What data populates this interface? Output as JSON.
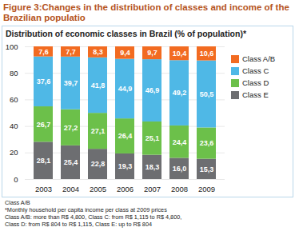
{
  "chart_data": {
    "type": "bar",
    "stacked": true,
    "data_labels": true,
    "grid": true,
    "legend": "right",
    "title": "Figure 3:Changes in the distribution of classes and income of the Brazilian populatio",
    "subtitle": "Distribution of economic classes in Brazil (% of population)*",
    "categories": [
      "2003",
      "2004",
      "2005",
      "2006",
      "2007",
      "2008",
      "2009"
    ],
    "series": [
      {
        "name": "Class E",
        "color": "#6d6e71",
        "values": [
          28.1,
          25.4,
          22.8,
          19.3,
          18.3,
          16.0,
          15.3
        ],
        "value_labels": [
          "28,1",
          "25,4",
          "22,8",
          "19,3",
          "18,3",
          "16,0",
          "15,3"
        ]
      },
      {
        "name": "Class D",
        "color": "#6cc04a",
        "values": [
          26.7,
          27.2,
          27.1,
          26.4,
          25.1,
          24.4,
          23.6
        ],
        "value_labels": [
          "26,7",
          "27,2",
          "27,1",
          "26,4",
          "25,1",
          "24,4",
          "23,6"
        ]
      },
      {
        "name": "Class C",
        "color": "#4fb8e6",
        "values": [
          37.6,
          39.7,
          41.8,
          44.9,
          46.9,
          49.2,
          50.5
        ],
        "value_labels": [
          "37,6",
          "39,7",
          "41,8",
          "44,9",
          "46,9",
          "49,2",
          "50,5"
        ]
      },
      {
        "name": "Class A/B",
        "color": "#f26b21",
        "values": [
          7.6,
          7.7,
          8.3,
          9.4,
          9.7,
          10.4,
          10.6
        ],
        "value_labels": [
          "7,6",
          "7,7",
          "8,3",
          "9,4",
          "9,7",
          "10,4",
          "10,6"
        ]
      }
    ],
    "ylim": [
      0,
      100
    ],
    "yticks": [
      0,
      20,
      40,
      60,
      80,
      100
    ],
    "annotations": [
      "Class A/B",
      "*Monthly household per capita income per class at 2009 prices",
      "Class A/B: more than R$ 4,800, Class C: from R$ 1,115 to R$ 4,800,",
      "Class D: from R$ 804 to R$ 1,115, Class E: up to R$ 804"
    ]
  }
}
